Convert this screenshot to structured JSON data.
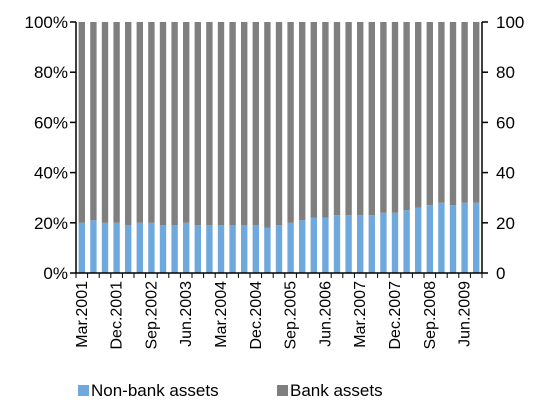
{
  "chart_data": {
    "type": "bar",
    "stacked": true,
    "percent": true,
    "categories": [
      "Mar.2001",
      "Jun.2001",
      "Sep.2001",
      "Dec.2001",
      "Mar.2002",
      "Jun.2002",
      "Sep.2002",
      "Dec.2002",
      "Mar.2003",
      "Jun.2003",
      "Sep.2003",
      "Dec.2003",
      "Mar.2004",
      "Jun.2004",
      "Sep.2004",
      "Dec.2004",
      "Mar.2005",
      "Jun.2005",
      "Sep.2005",
      "Dec.2005",
      "Mar.2006",
      "Jun.2006",
      "Sep.2006",
      "Dec.2006",
      "Mar.2007",
      "Jun.2007",
      "Sep.2007",
      "Dec.2007",
      "Mar.2008",
      "Jun.2008",
      "Sep.2008",
      "Dec.2008",
      "Mar.2009",
      "Jun.2009",
      "Sep.2009"
    ],
    "x_tick_labels": [
      "Mar.2001",
      "Dec.2001",
      "Sep.2002",
      "Jun.2003",
      "Mar.2004",
      "Dec.2004",
      "Sep.2005",
      "Jun.2006",
      "Mar.2007",
      "Dec.2007",
      "Sep.2008",
      "Jun.2009"
    ],
    "series": [
      {
        "name": "Non-bank assets",
        "color": "#6fa8dc",
        "values": [
          20,
          21,
          20,
          20,
          19,
          20,
          20,
          19,
          19,
          20,
          19,
          19,
          19,
          19,
          19,
          19,
          18,
          19,
          20,
          21,
          22,
          22,
          23,
          23,
          23,
          23,
          24,
          24,
          25,
          26,
          27,
          28,
          27,
          28,
          28
        ]
      },
      {
        "name": "Bank assets",
        "color": "#7f7f7f",
        "values": [
          80,
          79,
          80,
          80,
          81,
          80,
          80,
          81,
          81,
          80,
          81,
          81,
          81,
          81,
          81,
          81,
          82,
          81,
          80,
          79,
          78,
          78,
          77,
          77,
          77,
          77,
          76,
          76,
          75,
          74,
          73,
          72,
          73,
          72,
          72
        ]
      }
    ],
    "y_left": {
      "ticks": [
        "0%",
        "20%",
        "40%",
        "60%",
        "80%",
        "100%"
      ],
      "range": [
        0,
        100
      ]
    },
    "y_right": {
      "ticks": [
        "0",
        "20",
        "40",
        "60",
        "80",
        "100"
      ],
      "range": [
        0,
        100
      ]
    },
    "legend_placement": "bottom",
    "grid": false
  }
}
